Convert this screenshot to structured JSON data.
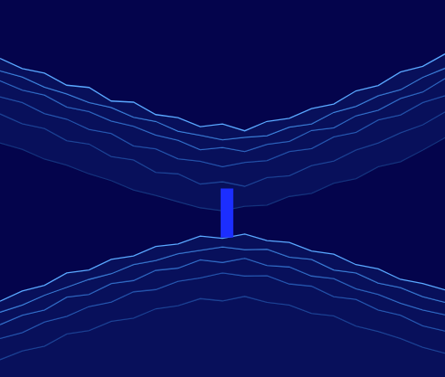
{
  "chart_data": {
    "type": "line",
    "grid": false,
    "tick_labels": false,
    "xlim": [
      0,
      100
    ],
    "ylim": [
      0,
      100
    ],
    "x": [
      0,
      5,
      10,
      15,
      20,
      25,
      30,
      35,
      40,
      45,
      50,
      55,
      60,
      65,
      70,
      75,
      80,
      85,
      90,
      95,
      100
    ],
    "series": [
      {
        "color": "#5aa8ff",
        "values": [
          84.5,
          81.8,
          80.6,
          77.4,
          76.8,
          73.2,
          72.9,
          69.6,
          68.8,
          66.4,
          67.1,
          65.3,
          67.8,
          68.6,
          71.2,
          72.4,
          75.9,
          77.3,
          80.9,
          82.4,
          85.7
        ]
      },
      {
        "color": "#4590ea",
        "values": [
          81.2,
          79.6,
          76.9,
          75.1,
          72.8,
          71.5,
          68.9,
          67.8,
          65.2,
          64.1,
          62.9,
          63.6,
          64.0,
          66.3,
          67.1,
          70.2,
          71.8,
          74.6,
          76.2,
          79.5,
          81.9
        ]
      },
      {
        "color": "#3777d2",
        "values": [
          78.6,
          76.1,
          74.8,
          71.6,
          70.4,
          67.9,
          66.5,
          64.2,
          62.8,
          60.3,
          60.9,
          59.8,
          61.7,
          62.5,
          65.4,
          66.1,
          69.3,
          70.8,
          73.9,
          75.6,
          79.2
        ]
      },
      {
        "color": "#2a5fb8",
        "values": [
          74.3,
          72.8,
          69.9,
          68.4,
          65.7,
          64.6,
          61.3,
          60.5,
          57.9,
          57.2,
          55.8,
          56.9,
          57.4,
          59.8,
          60.6,
          63.7,
          64.9,
          68.2,
          69.5,
          72.8,
          74.6
        ]
      },
      {
        "color": "#204a9c",
        "values": [
          69.8,
          67.2,
          65.9,
          62.7,
          61.8,
          58.5,
          57.6,
          54.3,
          53.9,
          51.2,
          51.8,
          50.6,
          52.9,
          53.4,
          56.1,
          57.3,
          60.2,
          62.1,
          64.8,
          66.9,
          70.3
        ]
      },
      {
        "color": "#173880",
        "values": [
          62.1,
          60.4,
          57.8,
          56.2,
          53.9,
          52.1,
          49.6,
          48.2,
          46.5,
          44.9,
          44.1,
          45.3,
          45.6,
          47.9,
          48.7,
          51.4,
          52.6,
          55.8,
          57.1,
          60.2,
          63.5
        ]
      },
      {
        "color": "#5aa8ff",
        "values": [
          20.1,
          22.8,
          24.3,
          27.6,
          28.4,
          31.2,
          32.1,
          34.6,
          35.3,
          37.4,
          36.8,
          37.9,
          36.2,
          35.7,
          33.4,
          32.6,
          29.8,
          28.7,
          25.9,
          24.8,
          23.1
        ]
      },
      {
        "color": "#4590ea",
        "values": [
          17.2,
          19.1,
          21.7,
          23.8,
          25.9,
          27.4,
          29.8,
          30.9,
          32.7,
          33.6,
          34.5,
          33.8,
          33.9,
          31.8,
          31.2,
          28.4,
          27.6,
          24.9,
          23.7,
          21.3,
          19.8
        ]
      },
      {
        "color": "#3777d2",
        "values": [
          13.9,
          16.4,
          17.8,
          21.2,
          21.9,
          24.8,
          25.6,
          28.3,
          28.9,
          31.1,
          30.4,
          31.5,
          29.6,
          29.2,
          26.8,
          26.1,
          23.4,
          21.9,
          19.6,
          17.8,
          16.5
        ]
      },
      {
        "color": "#2a5fb8",
        "values": [
          10.2,
          11.8,
          14.6,
          16.1,
          18.7,
          19.9,
          22.6,
          23.2,
          25.4,
          26.3,
          27.6,
          26.8,
          26.9,
          24.7,
          24.1,
          21.3,
          20.6,
          17.8,
          16.4,
          13.6,
          12.2
        ]
      },
      {
        "color": "#204a9c",
        "values": [
          4.6,
          6.9,
          8.2,
          11.4,
          12.3,
          14.8,
          15.6,
          18.1,
          18.9,
          20.8,
          20.2,
          21.4,
          19.8,
          19.1,
          16.9,
          16.2,
          13.5,
          12.1,
          10.2,
          7.9,
          6.3
        ]
      },
      {
        "color": "#1c2eff",
        "x": [
          51,
          51
        ],
        "values": [
          37,
          50
        ]
      }
    ]
  }
}
